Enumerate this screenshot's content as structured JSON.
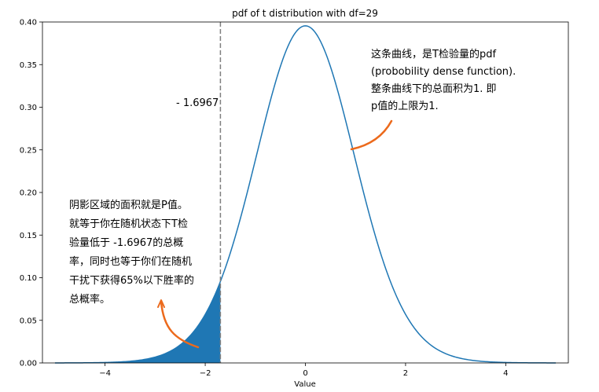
{
  "chart_data": {
    "type": "line",
    "title": "pdf of t distribution with df=29",
    "xlabel": "Value",
    "ylabel": "",
    "df": 29,
    "xlim": [
      -5.25,
      5.25
    ],
    "ylim": [
      0,
      0.4
    ],
    "x_range": [
      -5,
      5
    ],
    "xticks": [
      -4,
      -2,
      0,
      2,
      4
    ],
    "xtick_labels": [
      "−4",
      "−2",
      "0",
      "2",
      "4"
    ],
    "yticks": [
      0,
      0.05,
      0.1,
      0.15,
      0.2,
      0.25,
      0.3,
      0.35,
      0.4
    ],
    "ytick_labels": [
      "0.00",
      "0.05",
      "0.10",
      "0.15",
      "0.20",
      "0.25",
      "0.30",
      "0.35",
      "0.40"
    ],
    "critical_value": -1.6967,
    "critical_label": "- 1.6967",
    "grid": false,
    "colors": {
      "curve": "#1f77b4",
      "shade": "#1f77b4",
      "arrow": "#ec6a1c",
      "vline": "#808080"
    },
    "annotations": {
      "right_lines": [
        "这条曲线，是T检验量的pdf",
        "(probobility dense function).",
        "整条曲线下的总面积为1. 即",
        "p值的上限为1."
      ],
      "left_lines": [
        "阴影区域的面积就是P值。",
        "就等于你在随机状态下T检",
        "验量低于 -1.6967的总概",
        "率，同时也等于你们在随机",
        "干扰下获得65%以下胜率的",
        "总概率。"
      ]
    }
  }
}
